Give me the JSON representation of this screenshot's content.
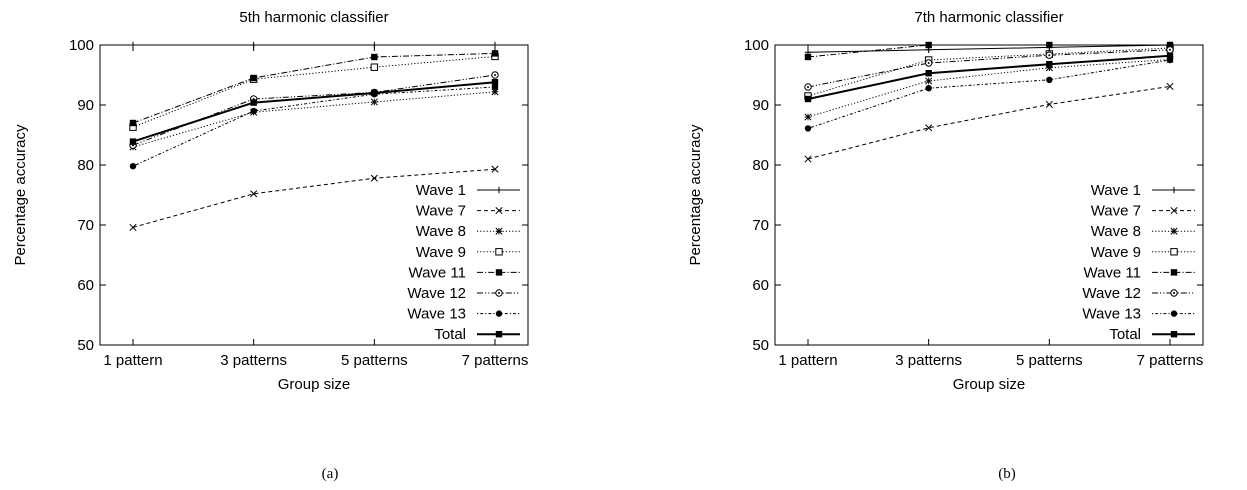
{
  "chart_data": [
    {
      "type": "line",
      "title": "5th harmonic classifier",
      "xlabel": "Group size",
      "ylabel": "Percentage accuracy",
      "caption": "(a)",
      "categories": [
        "1 pattern",
        "3 patterns",
        "5 patterns",
        "7 patterns"
      ],
      "ylim": [
        50,
        100
      ],
      "yticks": [
        "50",
        "60",
        "70",
        "80",
        "90",
        "100"
      ],
      "grid": false,
      "legend_position": "lower-right",
      "series": [
        {
          "name": "Wave 1",
          "values": [
            100,
            100,
            100,
            100
          ],
          "marker": "plus",
          "dash": "solid"
        },
        {
          "name": "Wave 7",
          "values": [
            69.6,
            75.2,
            77.8,
            79.3
          ],
          "marker": "x",
          "dash": "dashed"
        },
        {
          "name": "Wave 8",
          "values": [
            83.0,
            88.8,
            90.5,
            92.2
          ],
          "marker": "star",
          "dash": "dotted"
        },
        {
          "name": "Wave 9",
          "values": [
            86.3,
            94.3,
            96.3,
            98.1
          ],
          "marker": "square-open",
          "dash": "dotted"
        },
        {
          "name": "Wave 11",
          "values": [
            87.0,
            94.5,
            98.0,
            98.6
          ],
          "marker": "square-filled",
          "dash": "dashdot"
        },
        {
          "name": "Wave 12",
          "values": [
            83.3,
            91.0,
            92.1,
            95.0
          ],
          "marker": "circle-open",
          "dash": "dashdotdot"
        },
        {
          "name": "Wave 13",
          "values": [
            79.8,
            89.0,
            91.8,
            93.0
          ],
          "marker": "circle-filled",
          "dash": "dotdash"
        },
        {
          "name": "Total",
          "values": [
            83.9,
            90.4,
            92.0,
            93.8
          ],
          "marker": "square-filled",
          "dash": "solid-bold"
        }
      ]
    },
    {
      "type": "line",
      "title": "7th harmonic classifier",
      "xlabel": "Group size",
      "ylabel": "Percentage accuracy",
      "caption": "(b)",
      "categories": [
        "1 pattern",
        "3 patterns",
        "5 patterns",
        "7 patterns"
      ],
      "ylim": [
        50,
        100
      ],
      "yticks": [
        "50",
        "60",
        "70",
        "80",
        "90",
        "100"
      ],
      "grid": false,
      "legend_position": "lower-right",
      "series": [
        {
          "name": "Wave 1",
          "values": [
            98.8,
            99.2,
            99.6,
            100
          ],
          "marker": "plus",
          "dash": "solid"
        },
        {
          "name": "Wave 7",
          "values": [
            81.0,
            86.2,
            90.1,
            93.1
          ],
          "marker": "x",
          "dash": "dashed"
        },
        {
          "name": "Wave 8",
          "values": [
            88.0,
            94.0,
            96.2,
            97.6
          ],
          "marker": "star",
          "dash": "dotted"
        },
        {
          "name": "Wave 9",
          "values": [
            91.5,
            97.5,
            98.5,
            99.5
          ],
          "marker": "square-open",
          "dash": "dotted"
        },
        {
          "name": "Wave 11",
          "values": [
            98.0,
            100,
            100,
            100
          ],
          "marker": "square-filled",
          "dash": "dashdot"
        },
        {
          "name": "Wave 12",
          "values": [
            93.0,
            97.0,
            98.3,
            99.2
          ],
          "marker": "circle-open",
          "dash": "dashdotdot"
        },
        {
          "name": "Wave 13",
          "values": [
            86.1,
            92.8,
            94.2,
            97.5
          ],
          "marker": "circle-filled",
          "dash": "dotdash"
        },
        {
          "name": "Total",
          "values": [
            91.0,
            95.3,
            96.8,
            98.2
          ],
          "marker": "square-filled",
          "dash": "solid-bold"
        }
      ]
    }
  ]
}
